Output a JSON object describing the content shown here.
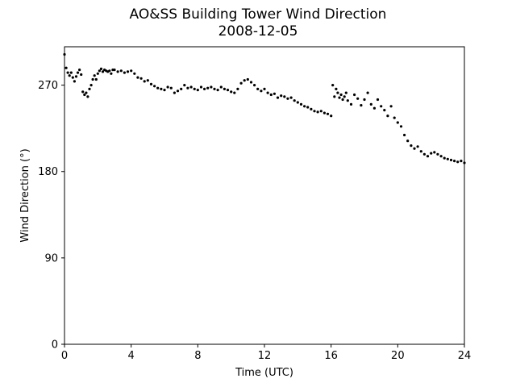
{
  "chart_data": {
    "type": "scatter",
    "title": "AO&SS Building Tower Wind Direction",
    "subtitle": "2008-12-05",
    "xlabel": "Time (UTC)",
    "ylabel": "Wind Direction (°)",
    "xlim": [
      0,
      24
    ],
    "ylim": [
      0,
      310
    ],
    "xticks": [
      0,
      4,
      8,
      12,
      16,
      20,
      24
    ],
    "yticks": [
      0,
      90,
      180,
      270
    ],
    "grid": false,
    "marker_color": "#000000",
    "series": [
      {
        "x": [
          0.0,
          0.1,
          0.2,
          0.3,
          0.4,
          0.5,
          0.6,
          0.7,
          0.8,
          0.9,
          1.0,
          1.1,
          1.2,
          1.3,
          1.4,
          1.5,
          1.6,
          1.7,
          1.8,
          1.9,
          2.0,
          2.1,
          2.2,
          2.3,
          2.4,
          2.5,
          2.6,
          2.7,
          2.8,
          2.9,
          3.0,
          3.2,
          3.4,
          3.6,
          3.8,
          4.0,
          4.2,
          4.4,
          4.6,
          4.8,
          5.0,
          5.2,
          5.4,
          5.6,
          5.8,
          6.0,
          6.2,
          6.4,
          6.6,
          6.8,
          7.0,
          7.2,
          7.4,
          7.6,
          7.8,
          8.0,
          8.2,
          8.4,
          8.6,
          8.8,
          9.0,
          9.2,
          9.4,
          9.6,
          9.8,
          10.0,
          10.2,
          10.4,
          10.6,
          10.8,
          11.0,
          11.2,
          11.4,
          11.6,
          11.8,
          12.0,
          12.2,
          12.4,
          12.6,
          12.8,
          13.0,
          13.2,
          13.4,
          13.6,
          13.8,
          14.0,
          14.2,
          14.4,
          14.6,
          14.8,
          15.0,
          15.2,
          15.4,
          15.6,
          15.8,
          16.0,
          16.1,
          16.2,
          16.3,
          16.4,
          16.5,
          16.6,
          16.7,
          16.8,
          16.9,
          17.0,
          17.2,
          17.4,
          17.6,
          17.8,
          18.0,
          18.2,
          18.4,
          18.6,
          18.8,
          19.0,
          19.2,
          19.4,
          19.6,
          19.8,
          20.0,
          20.2,
          20.4,
          20.6,
          20.8,
          21.0,
          21.2,
          21.4,
          21.6,
          21.8,
          22.0,
          22.2,
          22.4,
          22.6,
          22.8,
          23.0,
          23.2,
          23.4,
          23.6,
          23.8,
          24.0
        ],
        "y": [
          302,
          288,
          283,
          280,
          283,
          278,
          274,
          279,
          283,
          286,
          281,
          263,
          260,
          262,
          258,
          266,
          270,
          276,
          280,
          276,
          282,
          285,
          287,
          284,
          286,
          285,
          284,
          285,
          282,
          286,
          286,
          284,
          285,
          283,
          284,
          285,
          282,
          278,
          277,
          274,
          275,
          271,
          269,
          267,
          266,
          265,
          268,
          267,
          262,
          264,
          266,
          270,
          267,
          268,
          266,
          265,
          268,
          266,
          267,
          268,
          266,
          265,
          268,
          266,
          265,
          263,
          262,
          266,
          272,
          275,
          276,
          273,
          270,
          266,
          264,
          266,
          262,
          260,
          261,
          257,
          259,
          258,
          256,
          257,
          254,
          252,
          250,
          248,
          247,
          245,
          243,
          242,
          243,
          241,
          240,
          238,
          270,
          258,
          266,
          262,
          257,
          260,
          255,
          258,
          262,
          254,
          250,
          260,
          256,
          249,
          255,
          262,
          250,
          246,
          255,
          248,
          244,
          238,
          248,
          236,
          231,
          227,
          218,
          212,
          207,
          204,
          206,
          201,
          198,
          196,
          199,
          200,
          198,
          196,
          194,
          193,
          192,
          191,
          190,
          191,
          189
        ]
      }
    ]
  }
}
